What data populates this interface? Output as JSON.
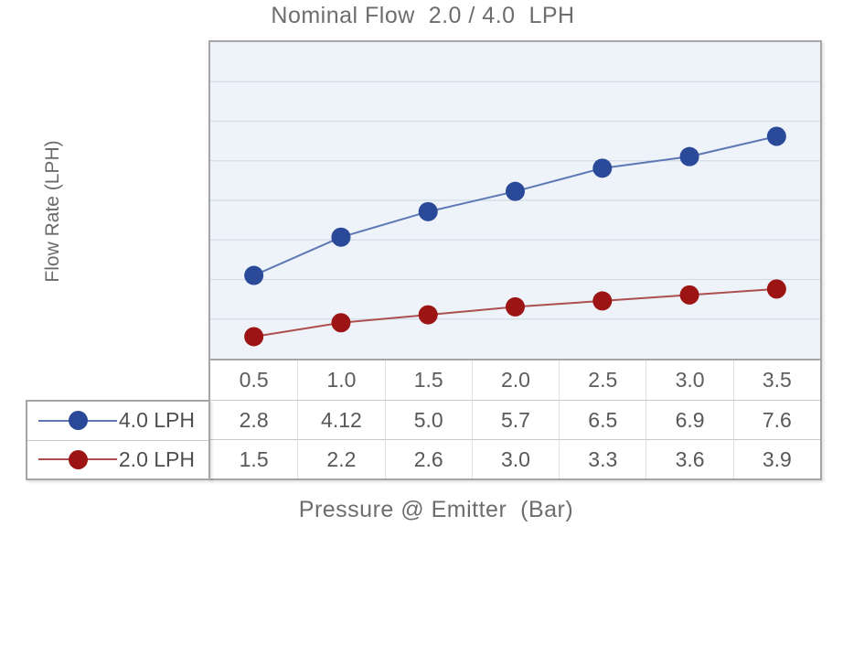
{
  "title": "Nominal Flow  2.0 / 4.0  LPH",
  "chart_data": {
    "type": "line",
    "title": "Nominal Flow  2.0 / 4.0  LPH",
    "xlabel": "Pressure @ Emitter  (Bar)",
    "ylabel": "Flow Rate (LPH)",
    "categories": [
      0.5,
      1.0,
      1.5,
      2.0,
      2.5,
      3.0,
      3.5
    ],
    "categories_display": [
      "0.5",
      "1.0",
      "1.5",
      "2.0",
      "2.5",
      "3.0",
      "3.5"
    ],
    "series": [
      {
        "name": "4.0 LPH",
        "values": [
          2.8,
          4.12,
          5.0,
          5.7,
          6.5,
          6.9,
          7.6
        ],
        "values_display": [
          "2.8",
          "4.12",
          "5.0",
          "5.7",
          "6.5",
          "6.9",
          "7.6"
        ],
        "marker_color": "#2a4a99",
        "line_color": "#5d78b4"
      },
      {
        "name": "2.0 LPH",
        "values": [
          1.5,
          2.2,
          2.6,
          3.0,
          3.3,
          3.6,
          3.9
        ],
        "values_display": [
          "1.5",
          "2.2",
          "2.6",
          "3.0",
          "3.3",
          "3.6",
          "3.9"
        ],
        "marker_color": "#9c1414",
        "line_color": "#ad4f4f"
      }
    ],
    "grid": "horizontal",
    "gridline_count": 7,
    "plot_background": "#edf3f9",
    "gridline_color": "#d3dce4",
    "border_color": "#a6a6a6",
    "legend_position": "table-left",
    "y_axis_ticks_visible": false,
    "marker_style": "filled-circle"
  }
}
